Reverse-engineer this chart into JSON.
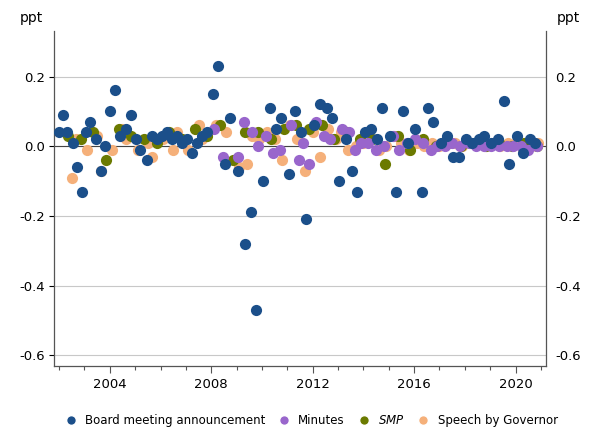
{
  "title": "",
  "ylabel_left": "ppt",
  "ylabel_right": "ppt",
  "xlim": [
    2001.8,
    2021.2
  ],
  "ylim": [
    -0.63,
    0.33
  ],
  "yticks": [
    -0.6,
    -0.4,
    -0.2,
    0.0,
    0.2
  ],
  "xticks": [
    2004,
    2008,
    2012,
    2016,
    2020
  ],
  "xminor_ticks": [
    2002,
    2003,
    2004,
    2005,
    2006,
    2007,
    2008,
    2009,
    2010,
    2011,
    2012,
    2013,
    2014,
    2015,
    2016,
    2017,
    2018,
    2019,
    2020,
    2021
  ],
  "grid_color": "#c8c8c8",
  "spine_color": "#555555",
  "bg_color": "#ffffff",
  "colors": {
    "board": "#1b4f8a",
    "minutes": "#9966cc",
    "smp": "#6b7a00",
    "speech": "#f5b07a"
  },
  "legend_labels": [
    "Board meeting announcement",
    "Minutes",
    "SMP",
    "Speech by Governor"
  ],
  "board_x": [
    2002.0,
    2002.15,
    2002.3,
    2002.55,
    2002.7,
    2002.9,
    2003.05,
    2003.2,
    2003.45,
    2003.65,
    2003.8,
    2004.0,
    2004.2,
    2004.4,
    2004.65,
    2004.85,
    2005.05,
    2005.2,
    2005.45,
    2005.65,
    2005.85,
    2006.05,
    2006.25,
    2006.45,
    2006.65,
    2006.85,
    2007.05,
    2007.25,
    2007.45,
    2007.65,
    2007.85,
    2008.05,
    2008.25,
    2008.55,
    2008.75,
    2009.05,
    2009.35,
    2009.55,
    2009.75,
    2010.05,
    2010.3,
    2010.55,
    2010.75,
    2011.05,
    2011.3,
    2011.55,
    2011.75,
    2012.05,
    2012.3,
    2012.55,
    2012.75,
    2013.05,
    2013.3,
    2013.55,
    2013.75,
    2014.05,
    2014.3,
    2014.55,
    2014.75,
    2015.05,
    2015.3,
    2015.55,
    2015.75,
    2016.05,
    2016.3,
    2016.55,
    2016.75,
    2017.05,
    2017.3,
    2017.55,
    2017.75,
    2018.05,
    2018.3,
    2018.55,
    2018.75,
    2019.05,
    2019.3,
    2019.55,
    2019.75,
    2020.05,
    2020.3,
    2020.55,
    2020.75
  ],
  "board_y": [
    0.04,
    0.09,
    0.04,
    0.01,
    -0.06,
    -0.13,
    0.04,
    0.07,
    0.02,
    -0.07,
    0.0,
    0.1,
    0.16,
    0.03,
    0.05,
    0.09,
    0.02,
    -0.01,
    -0.04,
    0.03,
    0.02,
    0.03,
    0.04,
    0.02,
    0.03,
    0.01,
    0.02,
    -0.02,
    0.01,
    0.03,
    0.04,
    0.15,
    0.23,
    -0.05,
    0.08,
    -0.07,
    -0.28,
    -0.19,
    -0.47,
    -0.1,
    0.11,
    0.05,
    0.08,
    -0.08,
    0.1,
    0.04,
    -0.21,
    0.06,
    0.12,
    0.11,
    0.08,
    -0.1,
    0.02,
    -0.07,
    -0.13,
    0.04,
    0.05,
    0.02,
    0.11,
    0.03,
    -0.13,
    0.1,
    0.01,
    0.05,
    -0.13,
    0.11,
    0.07,
    0.01,
    0.03,
    -0.03,
    -0.03,
    0.02,
    0.01,
    0.02,
    0.03,
    0.01,
    0.02,
    0.13,
    -0.05,
    0.03,
    -0.02,
    0.02,
    0.01
  ],
  "minutes_x": [
    2008.1,
    2008.45,
    2009.05,
    2009.3,
    2009.6,
    2009.85,
    2010.15,
    2010.45,
    2010.7,
    2011.15,
    2011.45,
    2011.6,
    2011.85,
    2012.15,
    2012.45,
    2012.7,
    2013.15,
    2013.45,
    2013.65,
    2013.9,
    2014.2,
    2014.5,
    2014.8,
    2015.15,
    2015.4,
    2015.7,
    2016.05,
    2016.35,
    2016.65,
    2016.9,
    2017.2,
    2017.5,
    2017.8,
    2018.15,
    2018.45,
    2018.75,
    2019.05,
    2019.35,
    2019.65,
    2019.9,
    2020.2,
    2020.5,
    2020.85
  ],
  "minutes_y": [
    0.05,
    -0.03,
    -0.03,
    0.07,
    0.04,
    0.0,
    0.03,
    -0.02,
    -0.01,
    0.06,
    -0.04,
    0.01,
    -0.05,
    0.07,
    0.03,
    0.02,
    0.05,
    0.04,
    -0.01,
    0.01,
    0.01,
    -0.01,
    0.0,
    0.03,
    -0.01,
    0.01,
    0.02,
    0.01,
    -0.01,
    0.0,
    0.0,
    0.01,
    0.0,
    0.01,
    0.0,
    0.0,
    0.0,
    0.0,
    0.0,
    0.0,
    0.0,
    -0.01,
    0.0
  ],
  "smp_x": [
    2002.35,
    2002.85,
    2003.35,
    2003.85,
    2004.35,
    2004.85,
    2005.35,
    2005.85,
    2006.35,
    2006.85,
    2007.35,
    2007.85,
    2008.35,
    2008.85,
    2009.35,
    2009.85,
    2010.35,
    2010.85,
    2011.35,
    2011.85,
    2012.35,
    2012.85,
    2013.35,
    2013.85,
    2014.35,
    2014.85,
    2015.35,
    2015.85,
    2016.35,
    2016.85,
    2017.35,
    2017.85,
    2018.35,
    2018.85,
    2019.35,
    2019.85,
    2020.35,
    2020.85
  ],
  "smp_y": [
    0.03,
    0.02,
    0.04,
    -0.04,
    0.05,
    0.03,
    0.02,
    0.01,
    0.04,
    0.02,
    0.05,
    0.03,
    0.06,
    -0.04,
    0.04,
    0.04,
    0.02,
    0.05,
    0.06,
    0.05,
    0.06,
    0.02,
    0.04,
    0.02,
    0.02,
    -0.05,
    0.03,
    -0.01,
    0.02,
    0.0,
    0.01,
    0.0,
    0.01,
    0.0,
    0.01,
    0.0,
    0.01,
    0.0
  ],
  "speech_x": [
    2002.5,
    2002.65,
    2003.1,
    2003.5,
    2003.65,
    2004.1,
    2004.5,
    2004.65,
    2005.1,
    2005.5,
    2005.65,
    2006.1,
    2006.5,
    2006.65,
    2007.1,
    2007.5,
    2007.65,
    2008.2,
    2008.6,
    2009.1,
    2009.4,
    2009.6,
    2009.9,
    2010.2,
    2010.5,
    2010.8,
    2011.1,
    2011.4,
    2011.7,
    2012.0,
    2012.3,
    2012.6,
    2012.9,
    2013.1,
    2013.4,
    2013.7,
    2014.0,
    2014.3,
    2014.6,
    2014.9,
    2015.2,
    2015.5,
    2015.8,
    2016.1,
    2016.4,
    2016.7,
    2017.0,
    2017.3,
    2017.6,
    2017.9,
    2018.2,
    2018.5,
    2018.8,
    2019.1,
    2019.4,
    2019.7,
    2020.0,
    2020.3,
    2020.6,
    2020.9
  ],
  "speech_y": [
    -0.09,
    0.02,
    -0.01,
    0.03,
    -0.07,
    -0.01,
    0.05,
    0.02,
    -0.01,
    0.01,
    -0.03,
    0.02,
    -0.01,
    0.04,
    -0.01,
    0.06,
    0.02,
    0.06,
    0.04,
    -0.06,
    -0.05,
    0.03,
    0.02,
    0.04,
    0.02,
    -0.04,
    0.06,
    0.02,
    -0.07,
    0.04,
    -0.03,
    0.05,
    0.02,
    0.04,
    -0.01,
    0.0,
    0.01,
    0.02,
    -0.01,
    0.0,
    0.03,
    0.01,
    -0.01,
    0.01,
    0.0,
    0.01,
    0.0,
    0.02,
    0.01,
    0.0,
    0.01,
    0.01,
    0.0,
    0.01,
    0.0,
    0.01,
    0.01,
    -0.01,
    0.0,
    0.01
  ],
  "marker_size": 6,
  "alpha": 1.0
}
